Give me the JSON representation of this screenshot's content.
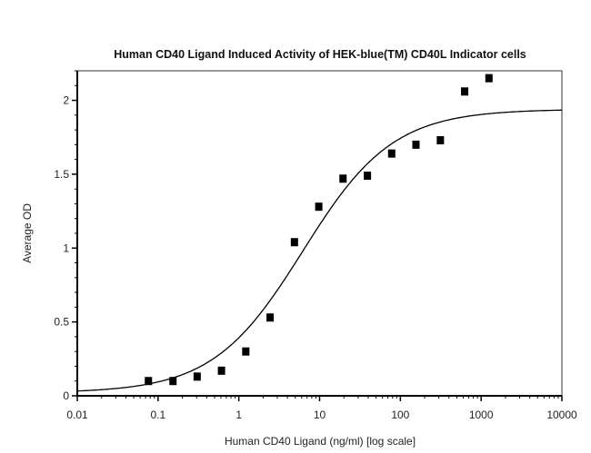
{
  "chart_data": {
    "type": "scatter",
    "title": "Human CD40 Ligand Induced Activity of HEK-blue(TM) CD40L Indicator cells",
    "xlabel": "Human CD40 Ligand (ng/ml) [log scale]",
    "ylabel": "Average OD",
    "xscale": "log",
    "xlim": [
      0.01,
      10000
    ],
    "ylim": [
      0,
      2.2
    ],
    "xticks": [
      "0.01",
      "0.1",
      "1",
      "10",
      "100",
      "1000",
      "10000"
    ],
    "yticks": [
      "0",
      "0.5",
      "1",
      "1.5",
      "2"
    ],
    "grid": false,
    "marker_color": "#000000",
    "line_color": "#000000",
    "series": [
      {
        "type": "scatter",
        "marker": "square",
        "x": [
          0.076,
          0.153,
          0.305,
          0.61,
          1.22,
          2.44,
          4.88,
          9.77,
          19.5,
          39.1,
          78.1,
          156,
          313,
          625,
          1250
        ],
        "y": [
          0.1,
          0.1,
          0.13,
          0.17,
          0.3,
          0.53,
          1.04,
          1.28,
          1.47,
          1.49,
          1.64,
          1.7,
          1.73,
          2.06,
          2.15
        ]
      },
      {
        "type": "line",
        "fit": "4PL",
        "bottom": 0.02,
        "top": 1.94,
        "ec50": 6.2,
        "hill": 0.78
      }
    ]
  }
}
